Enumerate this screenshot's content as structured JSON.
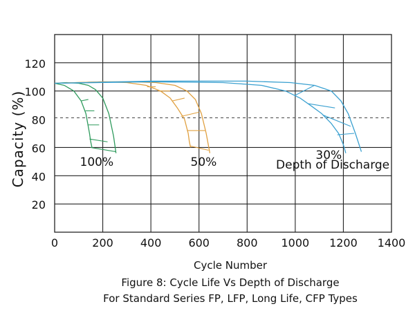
{
  "chart_data": {
    "type": "line",
    "xlabel": "Cycle Number",
    "ylabel": "Capacity (%)",
    "caption_line1": "Figure 8: Cycle Life Vs Depth of Discharge",
    "caption_line2": "For Standard Series FP, LFP, Long Life, CFP Types",
    "xlim": [
      0,
      1400
    ],
    "ylim": [
      0,
      140
    ],
    "x_ticks": [
      "0",
      "200",
      "400",
      "600",
      "800",
      "1000",
      "1200",
      "1400"
    ],
    "y_ticks": [
      "20",
      "40",
      "60",
      "80",
      "100",
      "120"
    ],
    "reference_line_y": 81,
    "grid": true,
    "series": [
      {
        "name": "100%",
        "color": "#2e9a5c",
        "upper": {
          "x": [
            0,
            50,
            100,
            140,
            170,
            200,
            225,
            245,
            255
          ],
          "y": [
            105.5,
            106,
            105.5,
            104,
            101,
            95,
            84,
            68,
            56
          ]
        },
        "lower": {
          "x": [
            0,
            40,
            80,
            110,
            130,
            145,
            150,
            155
          ],
          "y": [
            105.5,
            104,
            100,
            93,
            84,
            70,
            64,
            60
          ]
        },
        "hatch": [
          [
            [
              110,
              93
            ],
            [
              140,
              94
            ]
          ],
          [
            [
              128,
              86
            ],
            [
              165,
              86
            ]
          ],
          [
            [
              139,
              76
            ],
            [
              185,
              76
            ]
          ],
          [
            [
              145,
              66
            ],
            [
              220,
              64
            ]
          ],
          [
            [
              150,
              60
            ],
            [
              255,
              57
            ]
          ]
        ]
      },
      {
        "name": "50%",
        "color": "#e0a040",
        "upper": {
          "x": [
            0,
            200,
            320,
            420,
            500,
            550,
            585,
            610,
            630,
            645
          ],
          "y": [
            105.5,
            106.5,
            106.5,
            106,
            104,
            100,
            94,
            84,
            70,
            56
          ]
        },
        "lower": {
          "x": [
            0,
            200,
            300,
            380,
            440,
            480,
            510,
            540,
            555,
            560,
            565
          ],
          "y": [
            105.5,
            106.5,
            106,
            104,
            100,
            95,
            88,
            80,
            70,
            64,
            60
          ]
        },
        "hatch": [
          [
            [
              385,
              103
            ],
            [
              420,
              103
            ]
          ],
          [
            [
              430,
              100
            ],
            [
              480,
              100
            ]
          ],
          [
            [
              490,
              93
            ],
            [
              540,
              95
            ]
          ],
          [
            [
              525,
              82
            ],
            [
              600,
              85
            ]
          ],
          [
            [
              550,
              72
            ],
            [
              625,
              72
            ]
          ],
          [
            [
              565,
              61
            ],
            [
              640,
              58
            ]
          ]
        ]
      },
      {
        "name": "30%",
        "color": "#3aa0d0",
        "upper": {
          "x": [
            0,
            400,
            800,
            980,
            1080,
            1150,
            1190,
            1220,
            1250,
            1275
          ],
          "y": [
            105.5,
            107,
            107,
            106,
            104,
            100,
            93,
            84,
            70,
            57
          ]
        },
        "lower": {
          "x": [
            0,
            400,
            700,
            860,
            960,
            1020,
            1070,
            1110,
            1150,
            1180,
            1200,
            1210
          ],
          "y": [
            105.5,
            106.5,
            106,
            104,
            100,
            95,
            89,
            84,
            77,
            70,
            62,
            56
          ]
        },
        "hatch": [
          [
            [
              1000,
              97
            ],
            [
              1080,
              104
            ]
          ],
          [
            [
              1055,
              91
            ],
            [
              1165,
              88
            ]
          ],
          [
            [
              1115,
              83
            ],
            [
              1230,
              75
            ]
          ],
          [
            [
              1175,
              69
            ],
            [
              1245,
              70
            ]
          ]
        ]
      }
    ],
    "annotations": [
      {
        "text": "100%",
        "x": 105,
        "y": 47
      },
      {
        "text": "50%",
        "x": 565,
        "y": 47
      },
      {
        "text": "30%",
        "x": 1085,
        "y": 52
      },
      {
        "text": "Depth of Discharge",
        "x": 920,
        "y": 45
      }
    ]
  }
}
